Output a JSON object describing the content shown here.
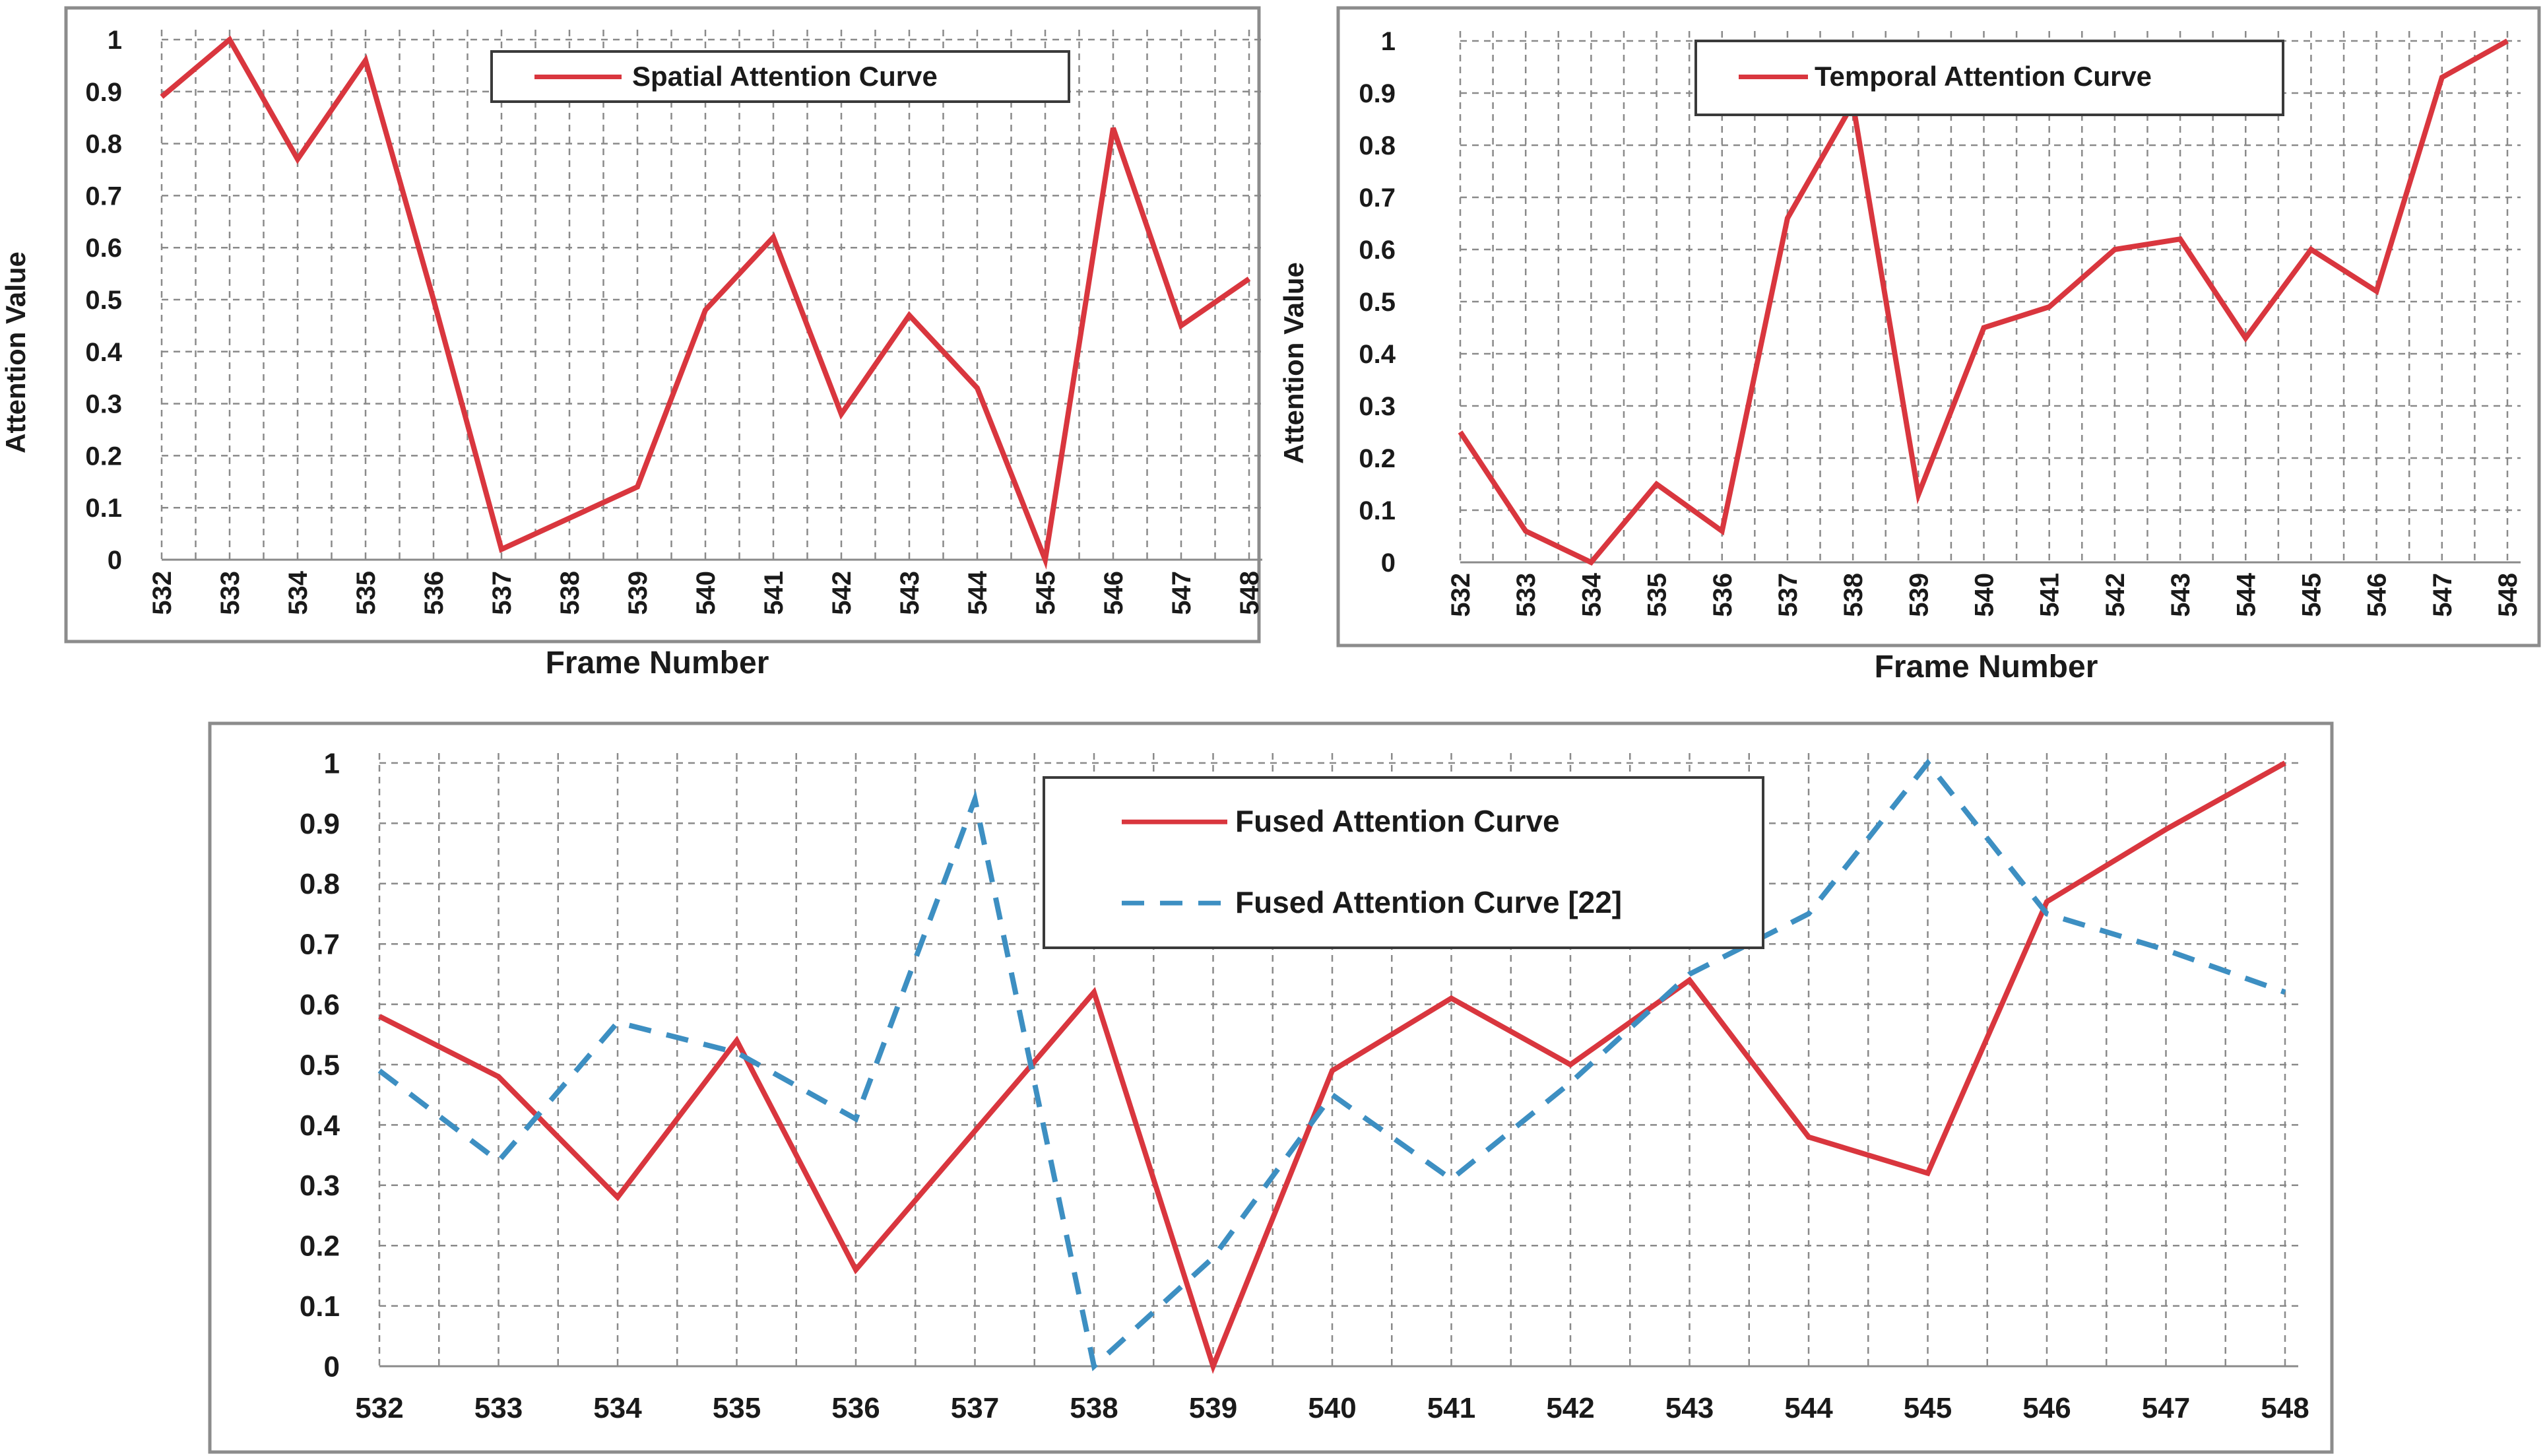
{
  "colors": {
    "red": "#d9363e",
    "blue": "#3d8fc2",
    "grid": "#8a8a8a"
  },
  "chart_data": [
    {
      "type": "line",
      "x": [
        "532",
        "533",
        "534",
        "535",
        "536",
        "537",
        "538",
        "539",
        "540",
        "541",
        "542",
        "543",
        "544",
        "545",
        "546",
        "547",
        "548"
      ],
      "series": [
        {
          "name": "Spatial Attention Curve",
          "values": [
            0.89,
            1.0,
            0.77,
            0.96,
            0.5,
            0.02,
            0.08,
            0.14,
            0.48,
            0.62,
            0.28,
            0.47,
            0.33,
            0.0,
            0.83,
            0.45,
            0.54
          ]
        }
      ],
      "ylim": [
        0,
        1
      ],
      "yticks": [
        "0",
        "0.1",
        "0.2",
        "0.3",
        "0.4",
        "0.5",
        "0.6",
        "0.7",
        "0.8",
        "0.9",
        "1"
      ],
      "xlabel": "Frame Number",
      "ylabel": "Attention Value",
      "grid": true,
      "legend": "top-center"
    },
    {
      "type": "line",
      "x": [
        "532",
        "533",
        "534",
        "535",
        "536",
        "537",
        "538",
        "539",
        "540",
        "541",
        "542",
        "543",
        "544",
        "545",
        "546",
        "547",
        "548"
      ],
      "series": [
        {
          "name": "Temporal Attention Curve",
          "values": [
            0.25,
            0.06,
            0.0,
            0.15,
            0.06,
            0.66,
            0.88,
            0.13,
            0.45,
            0.49,
            0.6,
            0.62,
            0.43,
            0.6,
            0.52,
            0.93,
            1.0
          ]
        }
      ],
      "ylim": [
        0,
        1
      ],
      "yticks": [
        "0",
        "0.1",
        "0.2",
        "0.3",
        "0.4",
        "0.5",
        "0.6",
        "0.7",
        "0.8",
        "0.9",
        "1"
      ],
      "xlabel": "Frame Number",
      "ylabel": "Attention Value",
      "grid": true,
      "legend": "top-center"
    },
    {
      "type": "line",
      "x": [
        "532",
        "533",
        "534",
        "535",
        "536",
        "537",
        "538",
        "539",
        "540",
        "541",
        "542",
        "543",
        "544",
        "545",
        "546",
        "547",
        "548"
      ],
      "series": [
        {
          "name": "Fused Attention Curve",
          "values": [
            0.58,
            0.48,
            0.28,
            0.54,
            0.16,
            0.39,
            0.62,
            0.0,
            0.49,
            0.61,
            0.5,
            0.64,
            0.38,
            0.32,
            0.77,
            0.89,
            1.0
          ]
        },
        {
          "name": "Fused Attention Curve [22]",
          "values": [
            0.49,
            0.34,
            0.57,
            0.52,
            0.41,
            0.94,
            0.0,
            0.18,
            0.45,
            0.31,
            0.47,
            0.65,
            0.75,
            1.0,
            0.75,
            0.69,
            0.62
          ]
        }
      ],
      "ylim": [
        0,
        1
      ],
      "yticks": [
        "0",
        "0.1",
        "0.2",
        "0.3",
        "0.4",
        "0.5",
        "0.6",
        "0.7",
        "0.8",
        "0.9",
        "1"
      ],
      "xlabel": "",
      "ylabel": "",
      "grid": true,
      "legend": "top-center"
    }
  ]
}
